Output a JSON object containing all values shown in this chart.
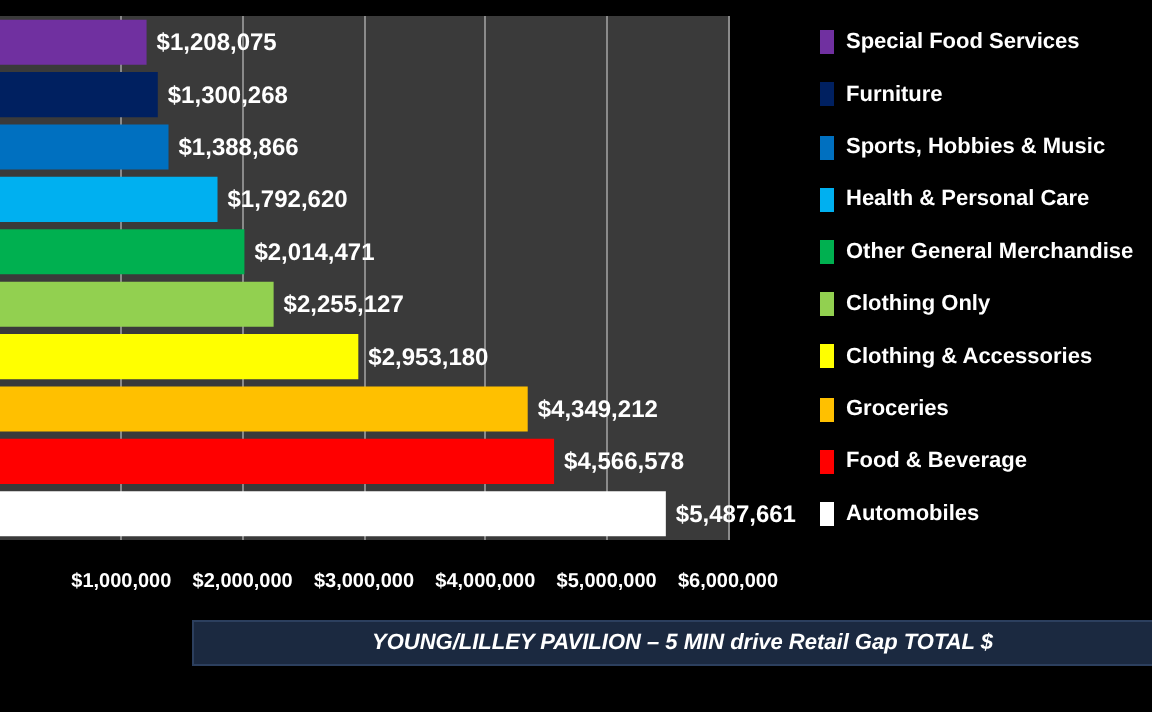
{
  "chart_data": {
    "type": "bar",
    "orientation": "horizontal",
    "title": "YOUNG/LILLEY PAVILION – 5 MIN drive Retail Gap TOTAL $",
    "categories": [
      "Special Food Services",
      "Furniture",
      "Sports, Hobbies & Music",
      "Health & Personal Care",
      "Other General Merchandise",
      "Clothing Only",
      "Clothing & Accessories",
      "Groceries",
      "Food & Beverage",
      "Automobiles"
    ],
    "values": [
      1208075,
      1300268,
      1388866,
      1792620,
      2014471,
      2255127,
      2953180,
      4349212,
      4566578,
      5487661
    ],
    "value_labels": [
      "$1,208,075",
      "$1,300,268",
      "$1,388,866",
      "$1,792,620",
      "$2,014,471",
      "$2,255,127",
      "$2,953,180",
      "$4,349,212",
      "$4,566,578",
      "$5,487,661"
    ],
    "colors": [
      "#7030a0",
      "#002060",
      "#0070c0",
      "#00b0f0",
      "#00b050",
      "#92d050",
      "#ffff00",
      "#ffc000",
      "#ff0000",
      "#ffffff"
    ],
    "xlim": [
      0,
      6000000
    ],
    "xticks": [
      {
        "value": 1000000,
        "label": "$1,000,000"
      },
      {
        "value": 2000000,
        "label": "$2,000,000"
      },
      {
        "value": 3000000,
        "label": "$3,000,000"
      },
      {
        "value": 4000000,
        "label": "$4,000,000"
      },
      {
        "value": 5000000,
        "label": "$5,000,000"
      },
      {
        "value": 6000000,
        "label": "$6,000,000"
      }
    ],
    "grid": "x"
  }
}
